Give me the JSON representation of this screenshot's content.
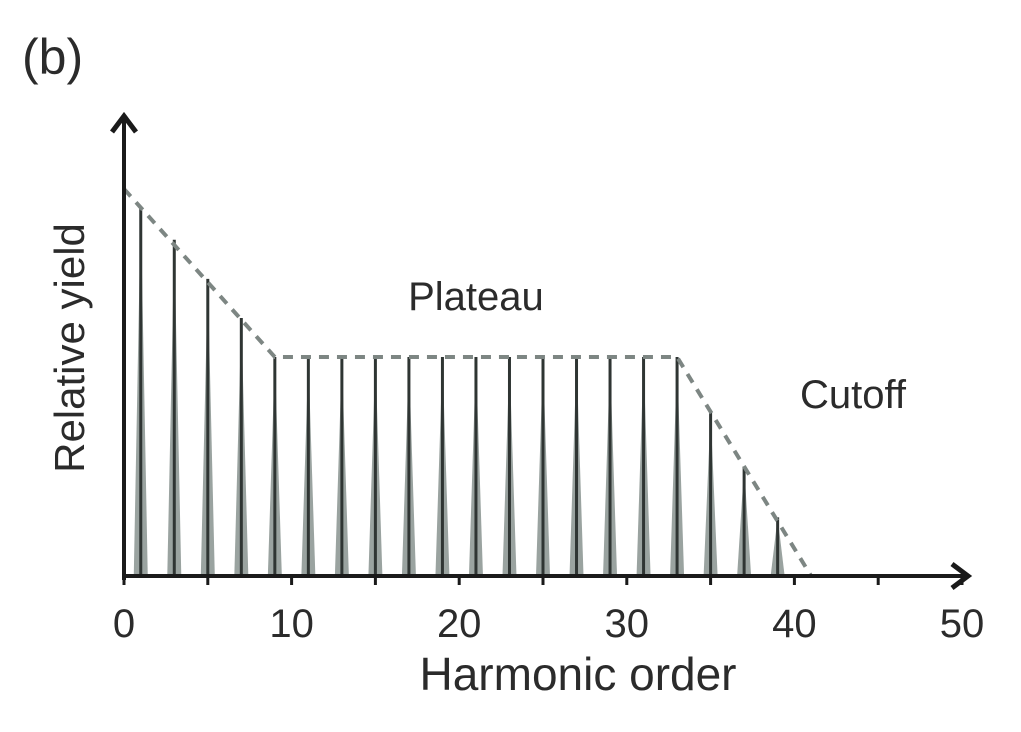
{
  "panel_label": "(b)",
  "chart_data": {
    "type": "bar",
    "xlabel": "Harmonic order",
    "ylabel": "Relative yield",
    "xlim": [
      0,
      50
    ],
    "ylim": [
      0,
      1
    ],
    "xticks": [
      "0",
      "10",
      "20",
      "30",
      "40",
      "50"
    ],
    "x": [
      1,
      3,
      5,
      7,
      9,
      11,
      13,
      15,
      17,
      19,
      21,
      23,
      25,
      27,
      29,
      31,
      33,
      35,
      37,
      39
    ],
    "values": [
      0.94,
      0.86,
      0.76,
      0.66,
      0.56,
      0.56,
      0.56,
      0.56,
      0.56,
      0.56,
      0.56,
      0.56,
      0.56,
      0.56,
      0.56,
      0.56,
      0.56,
      0.42,
      0.28,
      0.15
    ],
    "envelope": {
      "x": [
        0,
        9,
        33,
        41
      ],
      "y": [
        0.99,
        0.56,
        0.56,
        0.0
      ]
    },
    "annotations": [
      {
        "text": "Plateau",
        "x": 21,
        "y": 0.68
      },
      {
        "text": "Cutoff",
        "x": 43.5,
        "y": 0.43
      }
    ],
    "colors": {
      "bar": "#9aa3a0",
      "bar_edge": "#2f3533",
      "axis": "#1a1a1a",
      "envelope": "#7d8683"
    }
  }
}
